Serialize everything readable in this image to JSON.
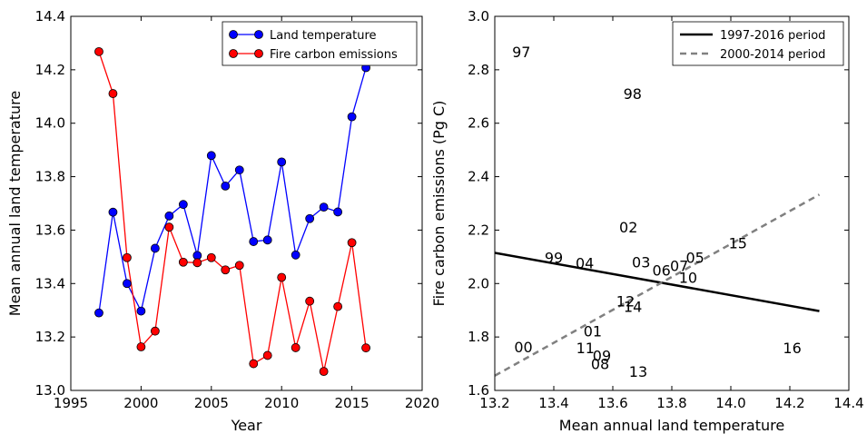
{
  "chart_data": [
    {
      "type": "line",
      "xlabel": "Year",
      "ylabel": "Mean annual land temperature",
      "xlim": [
        1995,
        2020
      ],
      "ylim": [
        13.0,
        14.4
      ],
      "xticks": [
        "1995",
        "2000",
        "2005",
        "2010",
        "2015",
        "2020"
      ],
      "yticks": [
        "13.0",
        "13.2",
        "13.4",
        "13.6",
        "13.8",
        "14.0",
        "14.2",
        "14.4"
      ],
      "legend": "top-right",
      "x": [
        1997,
        1998,
        1999,
        2000,
        2001,
        2002,
        2003,
        2004,
        2005,
        2006,
        2007,
        2008,
        2009,
        2010,
        2011,
        2012,
        2013,
        2014,
        2015,
        2016
      ],
      "series": [
        {
          "name": "Land temperature",
          "color": "#0000ff",
          "values": [
            13.29,
            13.667,
            13.4,
            13.297,
            13.532,
            13.653,
            13.696,
            13.505,
            13.879,
            13.765,
            13.825,
            13.557,
            13.563,
            13.855,
            13.507,
            13.643,
            13.686,
            13.668,
            14.024,
            14.208
          ]
        },
        {
          "name": "Fire carbon emissions",
          "color": "#ff0000",
          "values": [
            14.268,
            14.111,
            13.497,
            13.163,
            13.222,
            13.611,
            13.48,
            13.478,
            13.497,
            13.451,
            13.468,
            13.1,
            13.131,
            13.423,
            13.16,
            13.334,
            13.071,
            13.314,
            13.553,
            13.159
          ]
        }
      ]
    },
    {
      "type": "scatter",
      "xlabel": "Mean annual land temperature",
      "ylabel": "Fire carbon emissions (Pg C)",
      "xlim": [
        13.2,
        14.4
      ],
      "ylim": [
        1.6,
        3.0
      ],
      "xticks": [
        "13.2",
        "13.4",
        "13.6",
        "13.8",
        "14.0",
        "14.2",
        "14.4"
      ],
      "yticks": [
        "1.6",
        "1.8",
        "2.0",
        "2.2",
        "2.4",
        "2.6",
        "2.8",
        "3.0"
      ],
      "legend": "top-right",
      "points": [
        {
          "label": "97",
          "x": 13.29,
          "y": 2.868
        },
        {
          "label": "98",
          "x": 13.667,
          "y": 2.711
        },
        {
          "label": "99",
          "x": 13.4,
          "y": 2.097
        },
        {
          "label": "00",
          "x": 13.297,
          "y": 1.763
        },
        {
          "label": "01",
          "x": 13.532,
          "y": 1.822
        },
        {
          "label": "02",
          "x": 13.653,
          "y": 2.211
        },
        {
          "label": "03",
          "x": 13.696,
          "y": 2.08
        },
        {
          "label": "04",
          "x": 13.505,
          "y": 2.078
        },
        {
          "label": "05",
          "x": 13.879,
          "y": 2.097
        },
        {
          "label": "06",
          "x": 13.765,
          "y": 2.051
        },
        {
          "label": "07",
          "x": 13.825,
          "y": 2.068
        },
        {
          "label": "08",
          "x": 13.557,
          "y": 1.7
        },
        {
          "label": "09",
          "x": 13.563,
          "y": 1.731
        },
        {
          "label": "10",
          "x": 13.855,
          "y": 2.023
        },
        {
          "label": "11",
          "x": 13.507,
          "y": 1.76
        },
        {
          "label": "12",
          "x": 13.643,
          "y": 1.934
        },
        {
          "label": "13",
          "x": 13.686,
          "y": 1.671
        },
        {
          "label": "14",
          "x": 13.668,
          "y": 1.914
        },
        {
          "label": "15",
          "x": 14.024,
          "y": 2.153
        },
        {
          "label": "16",
          "x": 14.208,
          "y": 1.759
        }
      ],
      "series": [
        {
          "name": "1997-2016 period",
          "color": "#000000",
          "style": "solid",
          "x": [
            13.2,
            14.3
          ],
          "y": [
            2.115,
            1.897
          ]
        },
        {
          "name": "2000-2014 period",
          "color": "#808080",
          "style": "dashed",
          "x": [
            13.2,
            14.3
          ],
          "y": [
            1.655,
            2.333
          ]
        }
      ]
    }
  ]
}
